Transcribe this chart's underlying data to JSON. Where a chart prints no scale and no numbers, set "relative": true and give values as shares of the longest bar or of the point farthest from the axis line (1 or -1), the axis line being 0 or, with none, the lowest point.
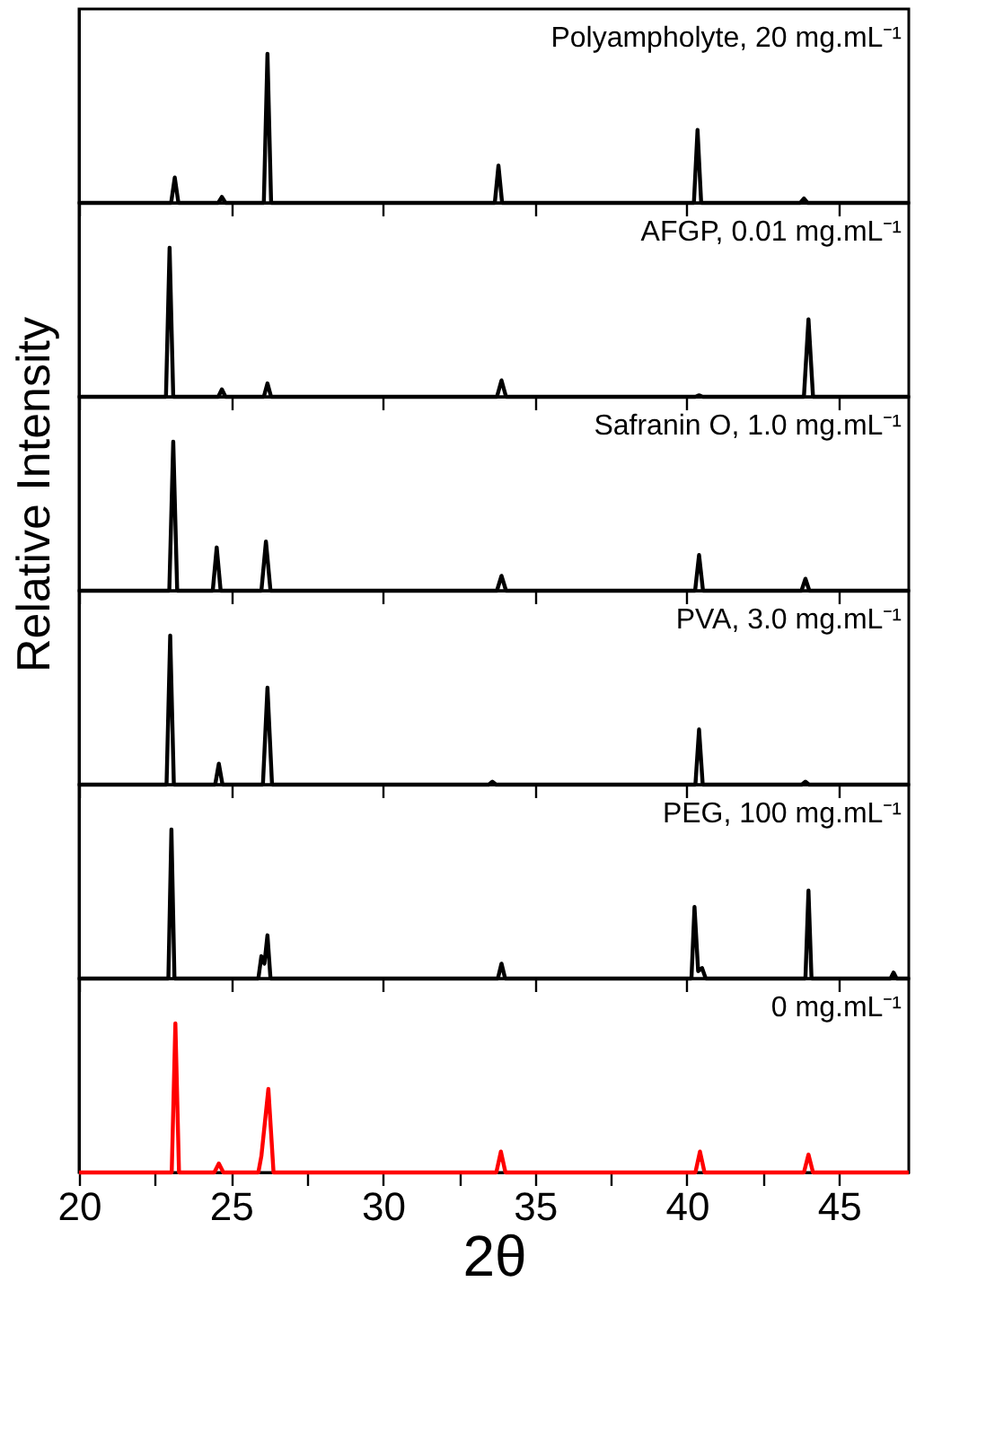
{
  "chart_data": [
    {
      "type": "line",
      "relative": true,
      "xlim": [
        20,
        47.3
      ],
      "xticks": [
        20,
        25,
        30,
        35,
        40,
        45
      ],
      "tick_labels": false,
      "grid": false,
      "series": [
        {
          "name": "Polyampholyte, 20 mg.mL⁻¹",
          "color": "#000000",
          "x": [
            20,
            23.03,
            23.15,
            23.27,
            24.58,
            24.7,
            24.82,
            26.08,
            26.2,
            26.32,
            33.68,
            33.8,
            33.92,
            40.23,
            40.35,
            40.47,
            43.73,
            43.85,
            43.97,
            47.3
          ],
          "values": [
            0,
            0,
            0.17,
            0,
            0,
            0.04,
            0,
            0,
            1,
            0,
            0,
            0.25,
            0,
            0,
            0.49,
            0,
            0,
            0.03,
            0,
            0
          ]
        }
      ]
    },
    {
      "type": "line",
      "relative": true,
      "xlim": [
        20,
        47.3
      ],
      "xticks": [
        20,
        25,
        30,
        35,
        40,
        45
      ],
      "tick_labels": false,
      "grid": false,
      "series": [
        {
          "name": "AFGP, 0.01 mg.mL⁻¹",
          "color": "#000000",
          "x": [
            20,
            22.86,
            22.98,
            23.1,
            24.58,
            24.7,
            24.82,
            26.08,
            26.2,
            26.32,
            33.75,
            33.9,
            34.05,
            40.28,
            40.4,
            40.52,
            43.85,
            44.0,
            44.15,
            47.3
          ],
          "values": [
            0,
            0,
            1,
            0,
            0,
            0.05,
            0,
            0,
            0.09,
            0,
            0,
            0.11,
            0,
            0,
            0.01,
            0,
            0,
            0.52,
            0,
            0
          ]
        }
      ]
    },
    {
      "type": "line",
      "relative": true,
      "xlim": [
        20,
        47.3
      ],
      "xticks": [
        20,
        25,
        30,
        35,
        40,
        45
      ],
      "tick_labels": false,
      "grid": false,
      "ylabel": "Relative Intensity",
      "series": [
        {
          "name": "Safranin O, 1.0 mg.mL⁻¹",
          "color": "#000000",
          "x": [
            20,
            22.97,
            23.1,
            23.23,
            24.4,
            24.53,
            24.66,
            26.0,
            26.15,
            26.3,
            33.75,
            33.9,
            34.05,
            40.27,
            40.4,
            40.53,
            43.77,
            43.9,
            44.03,
            47.3
          ],
          "values": [
            0,
            0,
            1,
            0,
            0,
            0.29,
            0,
            0,
            0.33,
            0,
            0,
            0.1,
            0,
            0,
            0.24,
            0,
            0,
            0.08,
            0,
            0
          ]
        }
      ]
    },
    {
      "type": "line",
      "relative": true,
      "xlim": [
        20,
        47.3
      ],
      "xticks": [
        20,
        25,
        30,
        35,
        40,
        45
      ],
      "tick_labels": false,
      "grid": false,
      "series": [
        {
          "name": "PVA, 3.0 mg.mL⁻¹",
          "color": "#000000",
          "x": [
            20,
            22.88,
            23.0,
            23.12,
            24.48,
            24.6,
            24.72,
            26.05,
            26.2,
            26.35,
            33.48,
            33.6,
            33.72,
            40.28,
            40.4,
            40.52,
            43.78,
            43.9,
            44.02,
            47.3
          ],
          "values": [
            0,
            0,
            1,
            0,
            0,
            0.14,
            0,
            0,
            0.65,
            0,
            0,
            0.02,
            0,
            0,
            0.37,
            0,
            0,
            0.02,
            0,
            0
          ]
        }
      ]
    },
    {
      "type": "line",
      "relative": true,
      "xlim": [
        20,
        47.3
      ],
      "xticks": [
        20,
        25,
        30,
        35,
        40,
        45
      ],
      "tick_labels": false,
      "grid": false,
      "series": [
        {
          "name": "PEG, 100 mg.mL⁻¹",
          "color": "#000000",
          "x": [
            20,
            22.94,
            23.04,
            23.14,
            25.9,
            26.0,
            26.1,
            26.2,
            26.3,
            33.78,
            33.9,
            34.02,
            40.15,
            40.25,
            40.37,
            40.5,
            40.62,
            43.9,
            44.0,
            44.1,
            46.7,
            46.8,
            46.9,
            47.3
          ],
          "values": [
            0,
            0,
            1,
            0,
            0,
            0.15,
            0.1,
            0.29,
            0,
            0,
            0.1,
            0,
            0,
            0.48,
            0.05,
            0.07,
            0,
            0,
            0.59,
            0,
            0,
            0.04,
            0,
            0
          ]
        }
      ]
    },
    {
      "type": "line",
      "relative": true,
      "xlim": [
        20,
        47.3
      ],
      "xticks": [
        20,
        25,
        30,
        35,
        40,
        45,
        {
          "value": 22.5,
          "label": null
        },
        {
          "value": 27.5,
          "label": null
        },
        {
          "value": 32.5,
          "label": null
        },
        {
          "value": 37.5,
          "label": null
        },
        {
          "value": 42.5,
          "label": null
        }
      ],
      "tick_labels": "x",
      "grid": false,
      "xlabel": "2θ",
      "series": [
        {
          "name": "0 mg.mL⁻¹",
          "color": "#ff0000",
          "x": [
            20,
            23.05,
            23.17,
            23.29,
            24.45,
            24.6,
            24.75,
            25.9,
            26.0,
            26.23,
            26.4,
            33.73,
            33.88,
            34.03,
            40.28,
            40.43,
            40.58,
            43.85,
            44.0,
            44.15,
            47.3
          ],
          "values": [
            0,
            0,
            1,
            0,
            0,
            0.06,
            0,
            0,
            0.11,
            0.56,
            0,
            0,
            0.14,
            0,
            0,
            0.14,
            0,
            0,
            0.12,
            0,
            0
          ]
        }
      ]
    }
  ]
}
